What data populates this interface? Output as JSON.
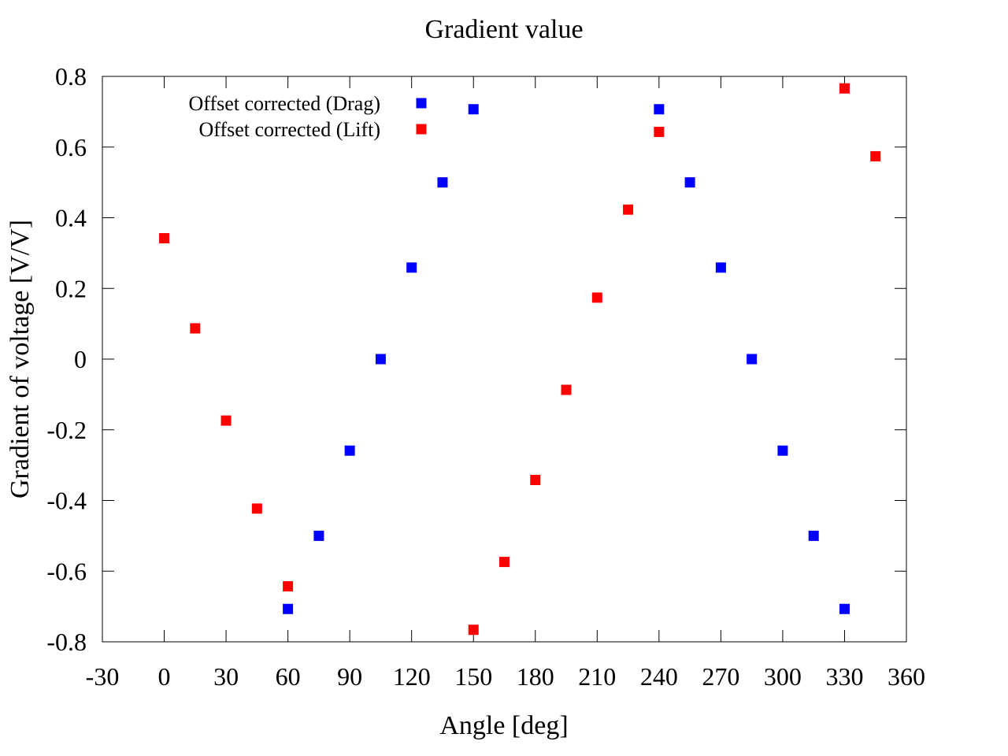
{
  "chart_data": {
    "type": "scatter",
    "title": "Gradient value",
    "xlabel": "Angle [deg]",
    "ylabel": "Gradient of voltage [V/V]",
    "xlim": [
      -30,
      360
    ],
    "ylim": [
      -0.8,
      0.8
    ],
    "xticks": [
      -30,
      0,
      30,
      60,
      90,
      120,
      150,
      180,
      210,
      240,
      270,
      300,
      330,
      360
    ],
    "yticks": [
      -0.8,
      -0.6,
      -0.4,
      -0.2,
      0,
      0.2,
      0.4,
      0.6,
      0.8
    ],
    "ytick_labels": [
      "-0.8",
      "-0.6",
      "-0.4",
      "-0.2",
      "0",
      "0.2",
      "0.4",
      "0.6",
      "0.8"
    ],
    "grid": false,
    "legend_position": "top-left",
    "series": [
      {
        "name": "Offset corrected (Drag)",
        "color": "#0000ff",
        "marker": "square",
        "points": [
          [
            60,
            -0.707
          ],
          [
            75,
            -0.5
          ],
          [
            90,
            -0.259
          ],
          [
            105,
            0.0
          ],
          [
            120,
            0.259
          ],
          [
            135,
            0.5
          ],
          [
            150,
            0.707
          ],
          [
            240,
            0.707
          ],
          [
            255,
            0.5
          ],
          [
            270,
            0.259
          ],
          [
            285,
            0.0
          ],
          [
            300,
            -0.259
          ],
          [
            315,
            -0.5
          ],
          [
            330,
            -0.707
          ]
        ]
      },
      {
        "name": "Offset corrected (Lift)",
        "color": "#ff0000",
        "marker": "square",
        "points": [
          [
            0,
            0.342
          ],
          [
            15,
            0.087
          ],
          [
            30,
            -0.174
          ],
          [
            45,
            -0.423
          ],
          [
            60,
            -0.643
          ],
          [
            150,
            -0.766
          ],
          [
            165,
            -0.574
          ],
          [
            180,
            -0.342
          ],
          [
            195,
            -0.087
          ],
          [
            210,
            0.174
          ],
          [
            225,
            0.423
          ],
          [
            240,
            0.643
          ],
          [
            330,
            0.766
          ],
          [
            345,
            0.574
          ]
        ]
      }
    ]
  }
}
